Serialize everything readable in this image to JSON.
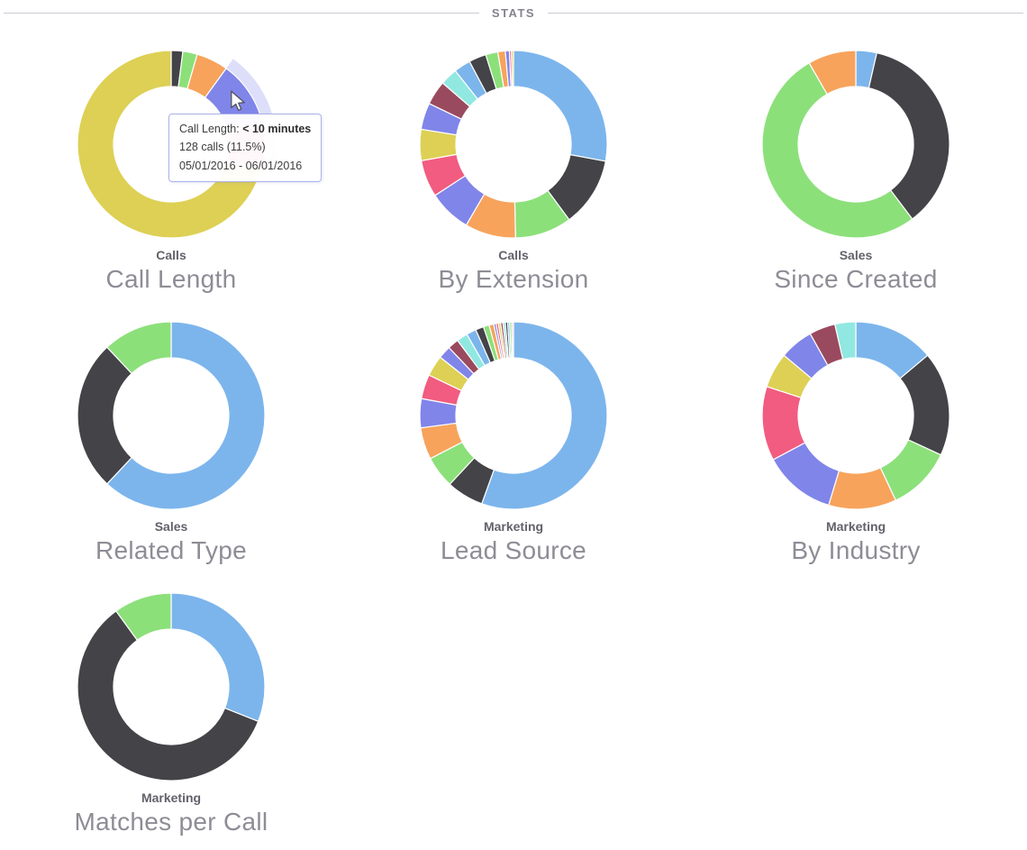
{
  "header": {
    "title": "STATS"
  },
  "tooltip": {
    "label_prefix": "Call Length: ",
    "value": "< 10 minutes",
    "line2": "128 calls (11.5%)",
    "line3": "05/01/2016 - 06/01/2016"
  },
  "colors": {
    "blue": "#7cb5ec",
    "dark": "#434348",
    "green": "#8ce07a",
    "orange": "#f7a35c",
    "violet": "#8085e9",
    "pink": "#f15c80",
    "yellow": "#ddd055",
    "maroon": "#9a4a5e",
    "cyan": "#91e8e1",
    "palepink": "#f3c9d3"
  },
  "chart_data": [
    {
      "type": "donut",
      "slug": "call-length",
      "title": "Call Length",
      "series_label": "Calls",
      "legend": "none",
      "segments": [
        {
          "color": "dark",
          "pct": 2.0
        },
        {
          "color": "green",
          "pct": 2.5
        },
        {
          "color": "orange",
          "pct": 5.5
        },
        {
          "color": "violet",
          "pct": 11.5,
          "label": "< 10 minutes",
          "calls": 128,
          "hovered": true,
          "halo": true
        },
        {
          "color": "pink",
          "pct": 8.0,
          "halo": true
        },
        {
          "color": "yellow",
          "pct": 70.5
        }
      ]
    },
    {
      "type": "donut",
      "slug": "by-extension",
      "title": "By Extension",
      "series_label": "Calls",
      "legend": "none",
      "segments": [
        {
          "color": "blue",
          "pct": 28.0
        },
        {
          "color": "dark",
          "pct": 12.0
        },
        {
          "color": "green",
          "pct": 9.8
        },
        {
          "color": "orange",
          "pct": 8.8
        },
        {
          "color": "violet",
          "pct": 7.4
        },
        {
          "color": "pink",
          "pct": 6.4
        },
        {
          "color": "yellow",
          "pct": 5.4
        },
        {
          "color": "violet",
          "pct": 4.6
        },
        {
          "color": "maroon",
          "pct": 4.2
        },
        {
          "color": "cyan",
          "pct": 3.0
        },
        {
          "color": "blue",
          "pct": 2.9
        },
        {
          "color": "dark",
          "pct": 3.0
        },
        {
          "color": "green",
          "pct": 2.1
        },
        {
          "color": "orange",
          "pct": 1.3
        },
        {
          "color": "violet",
          "pct": 0.7
        },
        {
          "color": "pink",
          "pct": 0.35
        },
        {
          "color": "yellow",
          "pct": 0.35
        }
      ]
    },
    {
      "type": "donut",
      "slug": "since-created",
      "title": "Since Created",
      "series_label": "Sales",
      "legend": "none",
      "segments": [
        {
          "color": "blue",
          "pct": 3.6
        },
        {
          "color": "dark",
          "pct": 36.1
        },
        {
          "color": "green",
          "pct": 52.0
        },
        {
          "color": "orange",
          "pct": 8.3
        }
      ]
    },
    {
      "type": "donut",
      "slug": "related-type",
      "title": "Related Type",
      "series_label": "Sales",
      "legend": "none",
      "segments": [
        {
          "color": "blue",
          "pct": 62.0
        },
        {
          "color": "dark",
          "pct": 26.0
        },
        {
          "color": "green",
          "pct": 12.0
        }
      ]
    },
    {
      "type": "donut",
      "slug": "lead-source",
      "title": "Lead Source",
      "series_label": "Marketing",
      "legend": "none",
      "segments": [
        {
          "color": "blue",
          "pct": 55.5
        },
        {
          "color": "dark",
          "pct": 6.4
        },
        {
          "color": "green",
          "pct": 5.5
        },
        {
          "color": "orange",
          "pct": 5.5
        },
        {
          "color": "violet",
          "pct": 5.0
        },
        {
          "color": "pink",
          "pct": 4.2
        },
        {
          "color": "yellow",
          "pct": 3.6
        },
        {
          "color": "violet",
          "pct": 2.2
        },
        {
          "color": "maroon",
          "pct": 1.9
        },
        {
          "color": "cyan",
          "pct": 1.9
        },
        {
          "color": "blue",
          "pct": 1.7
        },
        {
          "color": "dark",
          "pct": 1.4
        },
        {
          "color": "green",
          "pct": 1.0
        },
        {
          "color": "orange",
          "pct": 0.8
        },
        {
          "color": "violet",
          "pct": 0.4
        },
        {
          "color": "pink",
          "pct": 0.4
        },
        {
          "color": "yellow",
          "pct": 0.4
        },
        {
          "color": "maroon",
          "pct": 0.4
        },
        {
          "color": "cyan",
          "pct": 0.4
        },
        {
          "color": "dark",
          "pct": 0.4
        },
        {
          "color": "blue",
          "pct": 0.35
        },
        {
          "color": "green",
          "pct": 0.35
        },
        {
          "color": "palepink",
          "pct": 0.3
        }
      ]
    },
    {
      "type": "donut",
      "slug": "by-industry",
      "title": "By Industry",
      "series_label": "Marketing",
      "legend": "none",
      "segments": [
        {
          "color": "blue",
          "pct": 13.9
        },
        {
          "color": "dark",
          "pct": 18.0
        },
        {
          "color": "green",
          "pct": 11.1
        },
        {
          "color": "orange",
          "pct": 11.7
        },
        {
          "color": "violet",
          "pct": 12.5
        },
        {
          "color": "pink",
          "pct": 12.8
        },
        {
          "color": "yellow",
          "pct": 6.1
        },
        {
          "color": "violet",
          "pct": 5.8
        },
        {
          "color": "maroon",
          "pct": 4.5
        },
        {
          "color": "cyan",
          "pct": 3.6
        }
      ]
    },
    {
      "type": "donut",
      "slug": "matches-per-call",
      "title": "Matches per Call",
      "series_label": "Marketing",
      "legend": "none",
      "segments": [
        {
          "color": "blue",
          "pct": 31.0
        },
        {
          "color": "dark",
          "pct": 59.0
        },
        {
          "color": "green",
          "pct": 10.0
        }
      ]
    }
  ]
}
